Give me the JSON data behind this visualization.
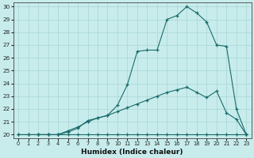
{
  "xlabel": "Humidex (Indice chaleur)",
  "bg_color": "#c8ecec",
  "line_color": "#1a6b6b",
  "grid_color": "#a8d4d4",
  "xlim": [
    -0.5,
    23.5
  ],
  "ylim": [
    19.7,
    30.3
  ],
  "xticks": [
    0,
    1,
    2,
    3,
    4,
    5,
    6,
    7,
    8,
    9,
    10,
    11,
    12,
    13,
    14,
    15,
    16,
    17,
    18,
    19,
    20,
    21,
    22,
    23
  ],
  "yticks": [
    20,
    21,
    22,
    23,
    24,
    25,
    26,
    27,
    28,
    29,
    30
  ],
  "line1_x": [
    0,
    1,
    2,
    3,
    4,
    5,
    6,
    7,
    8,
    9,
    10,
    11,
    12,
    13,
    14,
    15,
    16,
    17,
    18,
    19,
    20,
    21,
    22,
    23
  ],
  "line1_y": [
    20,
    20,
    20,
    20,
    20,
    20,
    20,
    20,
    20,
    20,
    20,
    20,
    20,
    20,
    20,
    20,
    20,
    20,
    20,
    20,
    20,
    20,
    20,
    20
  ],
  "line2_x": [
    0,
    1,
    2,
    3,
    4,
    5,
    6,
    7,
    8,
    9,
    10,
    11,
    12,
    13,
    14,
    15,
    16,
    17,
    18,
    19,
    20,
    21,
    22,
    23
  ],
  "line2_y": [
    20,
    20,
    20,
    20,
    20,
    20.3,
    20.6,
    21.0,
    21.3,
    21.5,
    21.8,
    22.1,
    22.4,
    22.7,
    23.0,
    23.3,
    23.5,
    23.7,
    23.3,
    22.9,
    23.4,
    21.7,
    21.2,
    20.0
  ],
  "line3_x": [
    2,
    3,
    4,
    5,
    6,
    7,
    8,
    9,
    10,
    11,
    12,
    13,
    14,
    15,
    16,
    17,
    18,
    19,
    20,
    21,
    22,
    23
  ],
  "line3_y": [
    20,
    20,
    20,
    20.2,
    20.5,
    21.1,
    21.3,
    21.5,
    22.3,
    23.9,
    26.5,
    26.6,
    26.6,
    29.0,
    29.3,
    30.0,
    29.5,
    28.8,
    27.0,
    26.9,
    22.0,
    20.0
  ]
}
